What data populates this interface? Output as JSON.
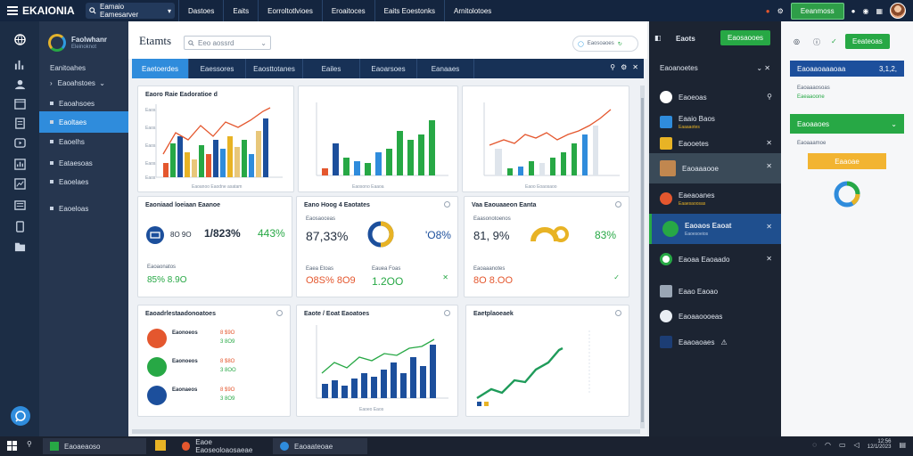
{
  "topbar": {
    "app_name": "EKAIONIA",
    "search_label": "Eamaio Eamesarver",
    "tabs": [
      "Dastoes",
      "Eaits",
      "Eorroltotlvioes",
      "Eroaitoces",
      "Eaits Eoestonks",
      "Arnitolotoes"
    ],
    "green_button": "Eeanmoss"
  },
  "sidebar": {
    "logo_title": "Faolwhanr",
    "logo_sub": "Eleinoknot",
    "section_label": "Eanitoahes",
    "items": [
      "Eaoahstoes",
      "Eaoahsoes",
      "Eaoltaes",
      "Eaoelhs",
      "Eataesoas",
      "Eaoelaes",
      "Eaoeloas"
    ]
  },
  "main": {
    "title": "Etamts",
    "search_placeholder": "Eeo aossrd",
    "pill_label": "Eaosoaoes",
    "tabs": [
      "Eaetoerdes",
      "Eaessores",
      "Eaosttotanes",
      "Eailes",
      "Eaoarsoes",
      "Eanaaes"
    ]
  },
  "cards": {
    "c1": {
      "title": "Eaoro Raie Eadoratioe d",
      "xlabel": "Eaoanoo Eaodne asatam",
      "ticks": [
        "Eaos",
        "Eaos",
        "Eaos",
        "Eaos",
        "Eaos"
      ]
    },
    "c2": {
      "xlabel": "Eaosono Eaaoa"
    },
    "c3": {
      "xlabel": "Eaoo Eoaosaoo"
    },
    "c4": {
      "title": "Eaoniaad loeiaan Eaanoe",
      "stats": [
        "8O 9O",
        "1/823%",
        "443%"
      ],
      "foot_label": "Eaoaonatos",
      "foot_value": "85% 8.9O"
    },
    "c5": {
      "title": "Eano Hoog 4 Eaotates",
      "sub_label": "Eaosaoceas",
      "stats": [
        "87,33%",
        "'O8%"
      ],
      "foot_label1": "Eaea Etoas",
      "foot_label2": "Eauea Foas",
      "foot_value1": "O8S% 8O9",
      "foot_value2": "1.2OO"
    },
    "c6": {
      "title": "Vaa Eaouaaeon Eanta",
      "sub_label": "Eaasonotoenos",
      "stats": [
        "81, 9%",
        "83%"
      ],
      "foot_label": "Eaoaaanotes",
      "foot_value": "8O 8.OO"
    },
    "c7": {
      "title": "Eaoadrlestaadonoatoes",
      "items": [
        {
          "label": "Eaonoeos",
          "value1": "8 $9O",
          "value2": "3 8O9"
        },
        {
          "label": "Eaonoeos",
          "value1": "8 $8O",
          "value2": "3 8OO"
        },
        {
          "label": "Eaonaeos",
          "value1": "8 $9O",
          "value2": "3 8O9"
        }
      ]
    },
    "c8": {
      "title": "Eaote / Eoat Eaoatoes",
      "xlabel": "Eaoeo Eaos"
    },
    "c9": {
      "title": "Eaetplaoeaek"
    }
  },
  "darkpanel": {
    "title": "Eaots",
    "button": "Eaosaooes",
    "section": "Eaoanoetes",
    "rows": [
      {
        "label": "Eaoeoas",
        "sub": ""
      },
      {
        "label": "Eaaio Baos",
        "sub": "Eaaaaotes"
      },
      {
        "label": "Eaooetes",
        "sub": ""
      },
      {
        "label": "Eaoaaaooe",
        "sub": ""
      },
      {
        "label": "Eaeaoanes",
        "sub": "Eaaesaoosas"
      },
      {
        "label": "Eaoaos Eaoat",
        "sub": "Eaoesoeios"
      },
      {
        "label": "Eaoaa Eaoaado",
        "sub": ""
      },
      {
        "label": "Eaao Eaoao",
        "sub": ""
      },
      {
        "label": "Eaoaaoooeas",
        "sub": ""
      },
      {
        "label": "Eaaoaoaes",
        "sub": ""
      }
    ]
  },
  "rightpanel": {
    "button": "Eeateoas",
    "item1": "Eaoaaoaaaoaa",
    "item1_value": "3,1,2,",
    "item2_label": "Eaoaaaosoas",
    "item2_value": "Eaeaaoone",
    "item3": "Eaoaaoes",
    "item4_label": "Eaoaaamoe",
    "item5": "Eaaoae"
  },
  "taskbar": {
    "tasks": [
      "Eaoaeaoso",
      "Eaoe Eaoseoloaosaeae",
      "Eaoaateoae"
    ],
    "time": "12:56",
    "date": "12/1/2023"
  },
  "colors": {
    "accent_blue": "#2f8cdc",
    "green": "#27a845",
    "orange": "#e4572e",
    "yellow": "#e8b325",
    "navy": "#173156"
  }
}
